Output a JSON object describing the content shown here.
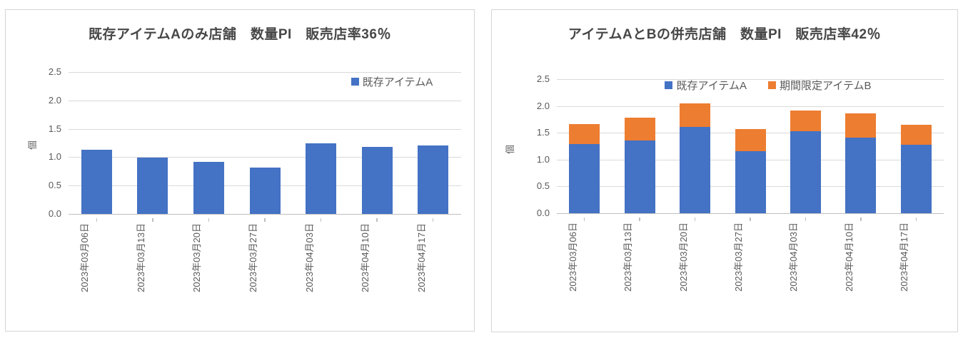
{
  "theme": {
    "background": "#ffffff",
    "card_border": "#D5D5D5",
    "gridline_color": "#D9D9D9",
    "axis_line_color": "#BFBFBF",
    "title_color": "#474747",
    "tick_label_color": "#595959",
    "series_blue": "#4472C4",
    "series_orange": "#ED7D31"
  },
  "chart_data": [
    {
      "type": "bar",
      "stacked": false,
      "title": "既存アイテムAのみ店舗　数量PI　販売店率36％",
      "categories": [
        "2023年03月06日",
        "2023年03月13日",
        "2023年03月20日",
        "2023年03月27日",
        "2023年04月03日",
        "2023年04月10日",
        "2023年04月17日"
      ],
      "series": [
        {
          "name": "既存アイテムA",
          "color": "#4472C4",
          "values": [
            1.13,
            0.99,
            0.92,
            0.82,
            1.24,
            1.18,
            1.2
          ]
        }
      ],
      "xlabel": "",
      "ylabel": "個",
      "ylim": [
        0,
        2.5
      ],
      "ytick_step": 0.5,
      "ytick_labels": [
        "0.0",
        "0.5",
        "1.0",
        "1.5",
        "2.0",
        "2.5"
      ],
      "grid": true,
      "legend_position": "top-right"
    },
    {
      "type": "bar",
      "stacked": true,
      "title": "アイテムAとBの併売店舗　数量PI　販売店率42％",
      "categories": [
        "2023年03月06日",
        "2023年03月13日",
        "2023年03月20日",
        "2023年03月27日",
        "2023年04月03日",
        "2023年04月10日",
        "2023年04月17日"
      ],
      "series": [
        {
          "name": "既存アイテムA",
          "color": "#4472C4",
          "values": [
            1.29,
            1.36,
            1.61,
            1.16,
            1.53,
            1.41,
            1.27
          ]
        },
        {
          "name": "期間限定アイテムB",
          "color": "#ED7D31",
          "values": [
            0.37,
            0.42,
            0.44,
            0.41,
            0.38,
            0.45,
            0.38
          ]
        }
      ],
      "xlabel": "",
      "ylabel": "個",
      "ylim": [
        0,
        2.5
      ],
      "ytick_step": 0.5,
      "ytick_labels": [
        "0.0",
        "0.5",
        "1.0",
        "1.5",
        "2.0",
        "2.5"
      ],
      "grid": true,
      "legend_position": "top-center"
    }
  ]
}
